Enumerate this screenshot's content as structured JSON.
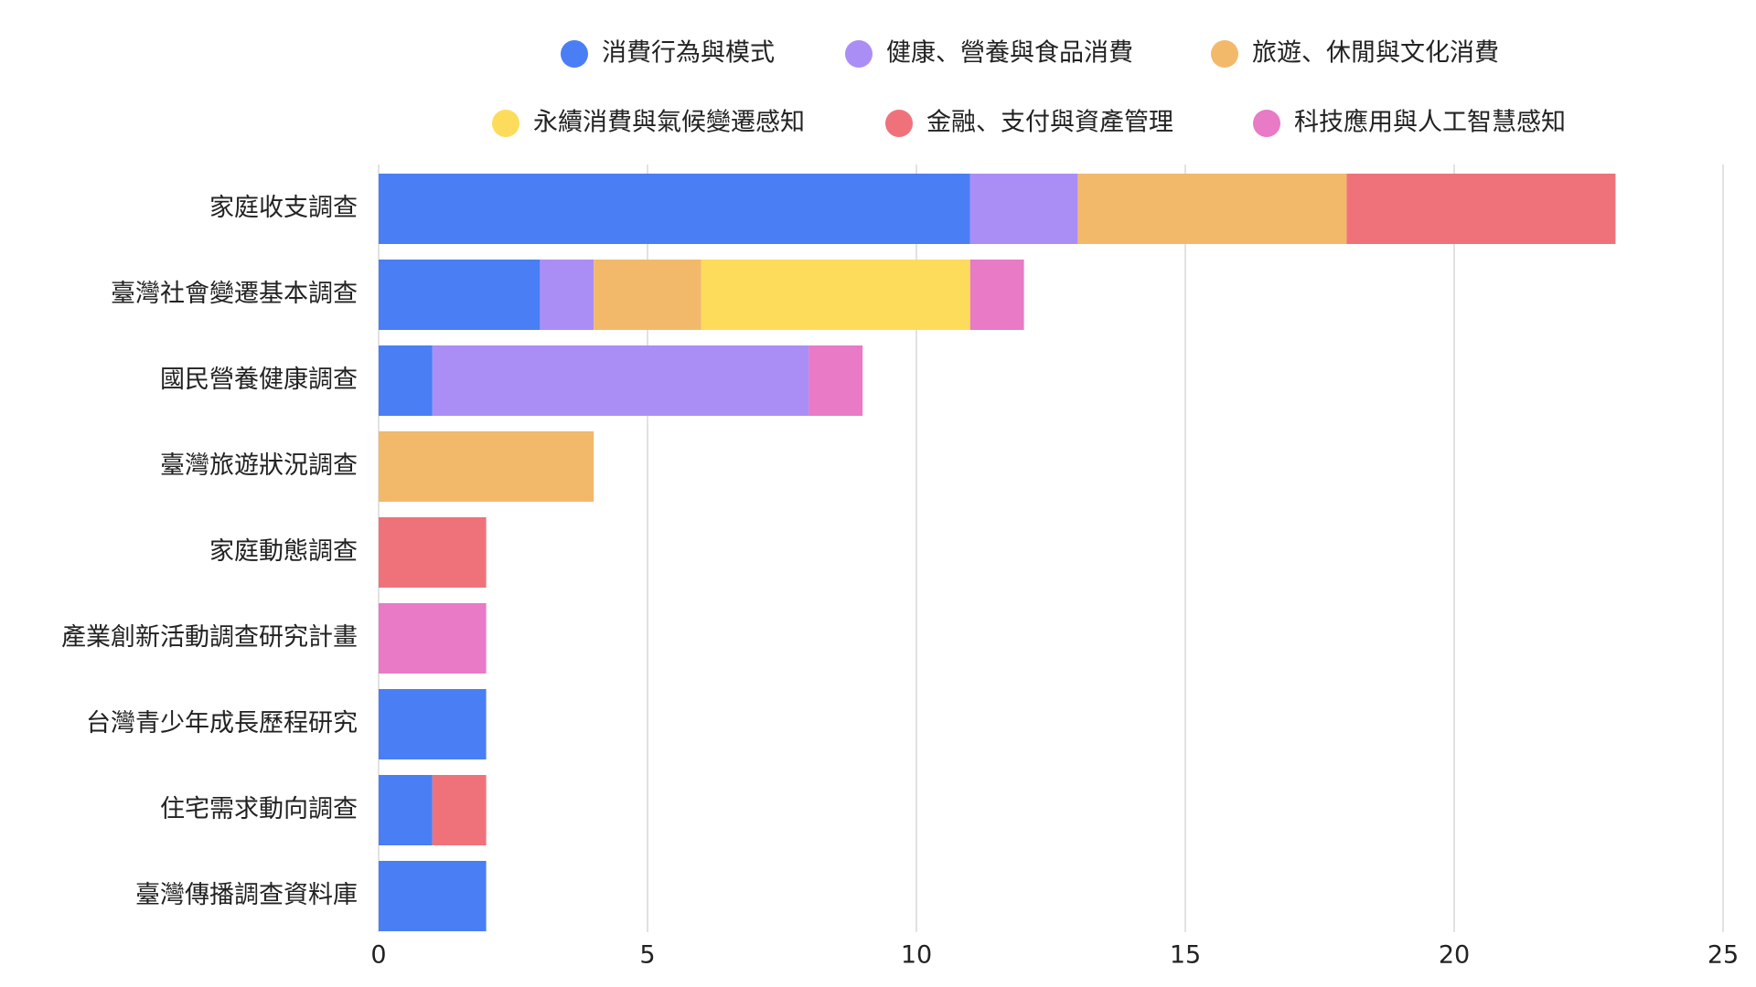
{
  "chart_data": {
    "type": "stacked-bar-horizontal",
    "categories": [
      "家庭收支調查",
      "臺灣社會變遷基本調查",
      "國民營養健康調查",
      "臺灣旅遊狀況調查",
      "家庭動態調查",
      "產業創新活動調查研究計畫",
      "台灣青少年成長歷程研究",
      "住宅需求動向調查",
      "臺灣傳播調查資料庫"
    ],
    "series": [
      {
        "name": "消費行為與模式",
        "color": "#4a7ef5",
        "values": [
          11,
          3,
          1,
          0,
          0,
          0,
          2,
          1,
          2
        ]
      },
      {
        "name": "健康、營養與食品消費",
        "color": "#ab8ef5",
        "values": [
          2,
          1,
          7,
          0,
          0,
          0,
          0,
          0,
          0
        ]
      },
      {
        "name": "旅遊、休閒與文化消費",
        "color": "#f2b96b",
        "values": [
          5,
          2,
          0,
          4,
          0,
          0,
          0,
          0,
          0
        ]
      },
      {
        "name": "永續消費與氣候變遷感知",
        "color": "#fddc5c",
        "values": [
          0,
          5,
          0,
          0,
          0,
          0,
          0,
          0,
          0
        ]
      },
      {
        "name": "金融、支付與資產管理",
        "color": "#ef727a",
        "values": [
          5,
          0,
          0,
          0,
          2,
          0,
          0,
          1,
          0
        ]
      },
      {
        "name": "科技應用與人工智慧感知",
        "color": "#e87ac6",
        "values": [
          0,
          1,
          1,
          0,
          0,
          2,
          0,
          0,
          0
        ]
      }
    ],
    "xlim": [
      0,
      25
    ],
    "xticks": [
      0,
      5,
      10,
      15,
      20,
      25
    ],
    "grid": true
  }
}
